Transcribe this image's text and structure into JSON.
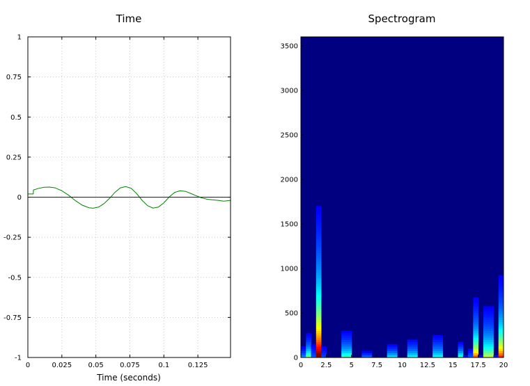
{
  "chart_data": [
    {
      "type": "line",
      "title": "Time",
      "xlabel": "Time (seconds)",
      "ylabel": "",
      "xlim": [
        0,
        0.149
      ],
      "ylim": [
        -1,
        1
      ],
      "grid": true,
      "x_ticks": [
        0,
        0.025,
        0.05,
        0.075,
        0.1,
        0.125
      ],
      "x_tick_labels": [
        "0",
        "0.025",
        "0.05",
        "0.075",
        "0.1",
        "0.125"
      ],
      "y_ticks": [
        1,
        0.75,
        0.5,
        0.25,
        0,
        -0.25,
        -0.5,
        -0.75,
        -1
      ],
      "y_tick_labels": [
        "1",
        "0.75",
        "0.5",
        "0.25",
        "0",
        "-0.25",
        "-0.5",
        "-0.75",
        "-1"
      ],
      "series": [
        {
          "color": "#008000",
          "x": [
            0,
            0.004,
            0.0041,
            0.008,
            0.012,
            0.016,
            0.02,
            0.025,
            0.03,
            0.035,
            0.04,
            0.045,
            0.048,
            0.052,
            0.056,
            0.06,
            0.064,
            0.068,
            0.072,
            0.076,
            0.08,
            0.084,
            0.088,
            0.092,
            0.096,
            0.1,
            0.104,
            0.108,
            0.112,
            0.116,
            0.12,
            0.124,
            0.128,
            0.132,
            0.136,
            0.14,
            0.144,
            0.149
          ],
          "y": [
            0.02,
            0.02,
            0.045,
            0.055,
            0.062,
            0.063,
            0.058,
            0.04,
            0.012,
            -0.022,
            -0.05,
            -0.066,
            -0.069,
            -0.062,
            -0.04,
            -0.008,
            0.03,
            0.058,
            0.066,
            0.055,
            0.022,
            -0.02,
            -0.053,
            -0.068,
            -0.062,
            -0.035,
            0.002,
            0.03,
            0.04,
            0.036,
            0.022,
            0.008,
            -0.005,
            -0.013,
            -0.017,
            -0.02,
            -0.025,
            -0.02
          ]
        },
        {
          "color": "#0000ff",
          "x": [
            0,
            0.149
          ],
          "y": [
            0,
            0
          ]
        }
      ]
    },
    {
      "type": "heatmap",
      "title": "Spectrogram",
      "xlabel": "",
      "ylabel": "",
      "xlim": [
        0,
        20
      ],
      "ylim": [
        0,
        3600
      ],
      "x_ticks": [
        0,
        2.5,
        5,
        7.5,
        10,
        12.5,
        15,
        17.5,
        20
      ],
      "x_tick_labels": [
        "0",
        "2.5",
        "5",
        "7.5",
        "10",
        "12.5",
        "15",
        "17.5",
        "20"
      ],
      "y_ticks": [
        0,
        500,
        1000,
        1500,
        2000,
        2500,
        3000,
        3500
      ],
      "y_tick_labels": [
        "0",
        "500",
        "1000",
        "1500",
        "2000",
        "2500",
        "3000",
        "3500"
      ],
      "colormap": "jet",
      "background_color": "#000080",
      "time_bins": 40,
      "freq_bins": 144,
      "bursts": [
        {
          "t": 1.75,
          "strength": 1.0,
          "reach": 600
        },
        {
          "t": 0.6,
          "strength": 0.55,
          "reach": 150
        },
        {
          "t": 4.5,
          "strength": 0.65,
          "reach": 200
        },
        {
          "t": 6.5,
          "strength": 0.3,
          "reach": 80
        },
        {
          "t": 9.0,
          "strength": 0.5,
          "reach": 120
        },
        {
          "t": 11.0,
          "strength": 0.55,
          "reach": 160
        },
        {
          "t": 13.5,
          "strength": 0.55,
          "reach": 200
        },
        {
          "t": 15.8,
          "strength": 0.4,
          "reach": 110
        },
        {
          "t": 17.2,
          "strength": 0.75,
          "reach": 260
        },
        {
          "t": 18.5,
          "strength": 0.85,
          "reach": 300
        },
        {
          "t": 19.8,
          "strength": 0.8,
          "reach": 350
        }
      ]
    }
  ]
}
